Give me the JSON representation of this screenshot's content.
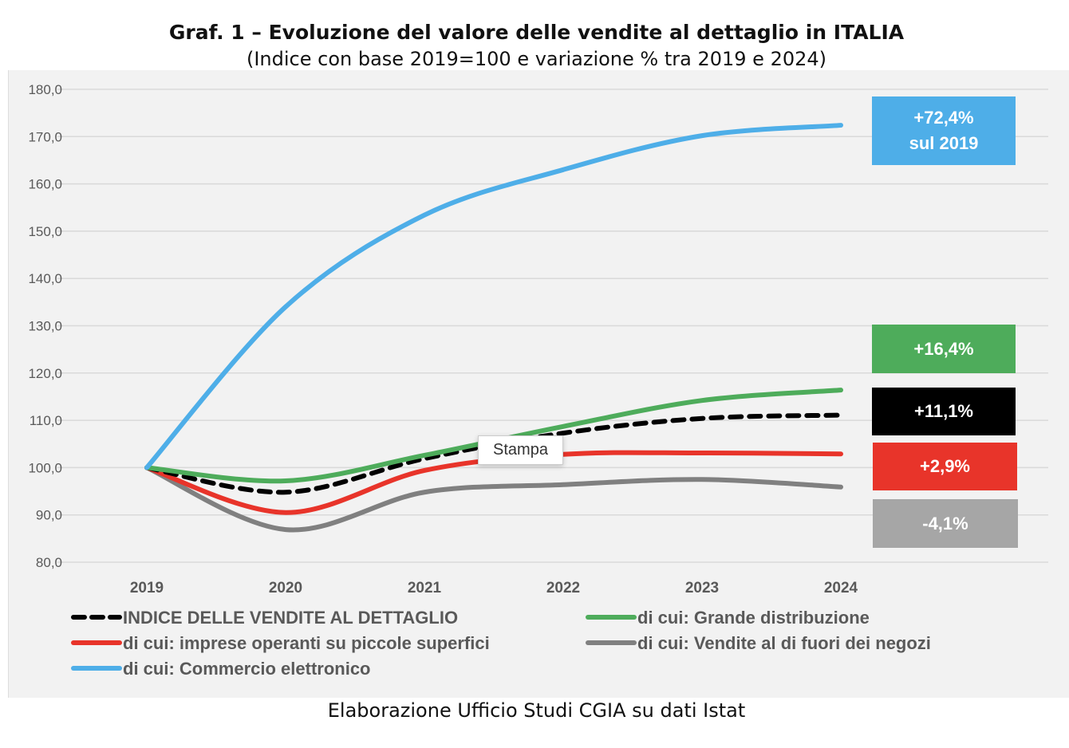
{
  "title": "Graf. 1 – Evoluzione del valore delle vendite al dettaglio in ITALIA",
  "subtitle": "(Indice con base 2019=100 e variazione % tra 2019 e 2024)",
  "source": "Elaborazione Ufficio Studi CGIA su dati Istat",
  "tooltip": "Stampa",
  "chart_data": {
    "type": "line",
    "x": [
      "2019",
      "2020",
      "2021",
      "2022",
      "2023",
      "2024"
    ],
    "ylim": [
      80,
      180
    ],
    "yticks": [
      "80,0",
      "90,0",
      "100,0",
      "110,0",
      "120,0",
      "130,0",
      "140,0",
      "150,0",
      "160,0",
      "170,0",
      "180,0"
    ],
    "grid": true,
    "legend_placement": "bottom",
    "series": [
      {
        "name": "INDICE DELLE VENDITE AL DETTAGLIO",
        "color": "#000000",
        "dashed": true,
        "values": [
          100,
          94.8,
          101.9,
          107.3,
          110.4,
          111.1
        ]
      },
      {
        "name": "di cui: Grande distribuzione",
        "color": "#4eac5b",
        "values": [
          100,
          97.2,
          102.6,
          108.7,
          114.2,
          116.4
        ]
      },
      {
        "name": "di cui: imprese operanti su piccole superfici",
        "color": "#e8342a",
        "values": [
          100,
          90.5,
          99.4,
          102.8,
          103.1,
          102.9
        ]
      },
      {
        "name": "di cui: Vendite al di fuori dei negozi",
        "color": "#808080",
        "values": [
          100,
          86.9,
          94.8,
          96.4,
          97.5,
          95.9
        ]
      },
      {
        "name": "di cui: Commercio elettronico",
        "color": "#4eaee8",
        "values": [
          100,
          134,
          153.4,
          163,
          170.2,
          172.4
        ]
      }
    ],
    "annotations": [
      {
        "text": "+72,4%",
        "text2": "sul 2019",
        "color": "#4eaee8"
      },
      {
        "text": "+16,4%",
        "color": "#4eac5b"
      },
      {
        "text": "+11,1%",
        "color": "#000000"
      },
      {
        "text": "+2,9%",
        "color": "#e8342a"
      },
      {
        "text": "-4,1%",
        "color": "#a6a6a6"
      }
    ]
  }
}
